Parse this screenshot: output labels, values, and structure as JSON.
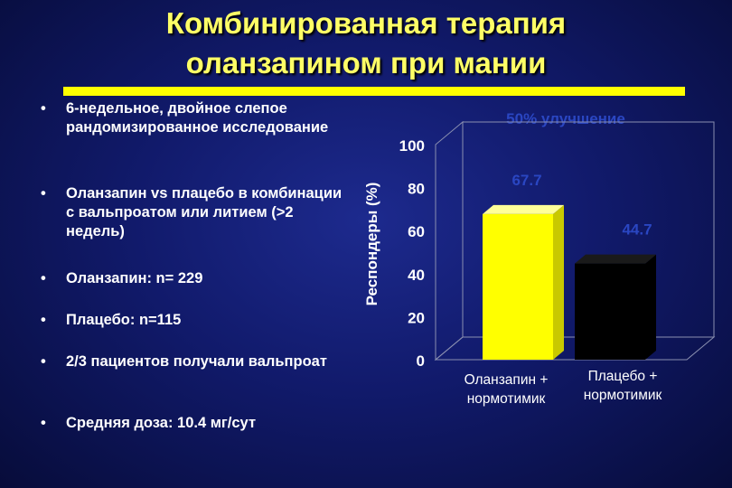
{
  "title": {
    "line1": "Комбинированная терапия",
    "line2": "оланзапином при мании"
  },
  "bullets": [
    "6-недельное, двойное слепое рандомизированное исследование",
    "Оланзапин vs плацебо в комбинации с вальпроатом или литием (>2 недель)",
    "Оланзапин: n= 229",
    "Плацебо: n=115",
    "2/3 пациентов получали вальпроат",
    "Средняя доза: 10.4 мг/сут"
  ],
  "colors": {
    "title": "#ffff66",
    "accent_bar": "#ffff00",
    "olanzapine_bar": "#ffff00",
    "placebo_bar": "#000000"
  },
  "chart_data": {
    "type": "bar",
    "title": "50% улучшение",
    "ylabel": "Респондеры (%)",
    "xlabel": "",
    "categories": [
      "Оланзапин + нормотимик",
      "Плацебо + нормотимик"
    ],
    "category_lines": [
      [
        "Оланзапин +",
        "нормотимик"
      ],
      [
        "Плацебо +",
        "нормотимик"
      ]
    ],
    "values": [
      67.7,
      44.7
    ],
    "value_labels": [
      "67.7",
      "44.7"
    ],
    "ylim": [
      0,
      100
    ],
    "yticks": [
      0,
      20,
      40,
      60,
      80,
      100
    ],
    "grid": false,
    "style": "3d"
  }
}
